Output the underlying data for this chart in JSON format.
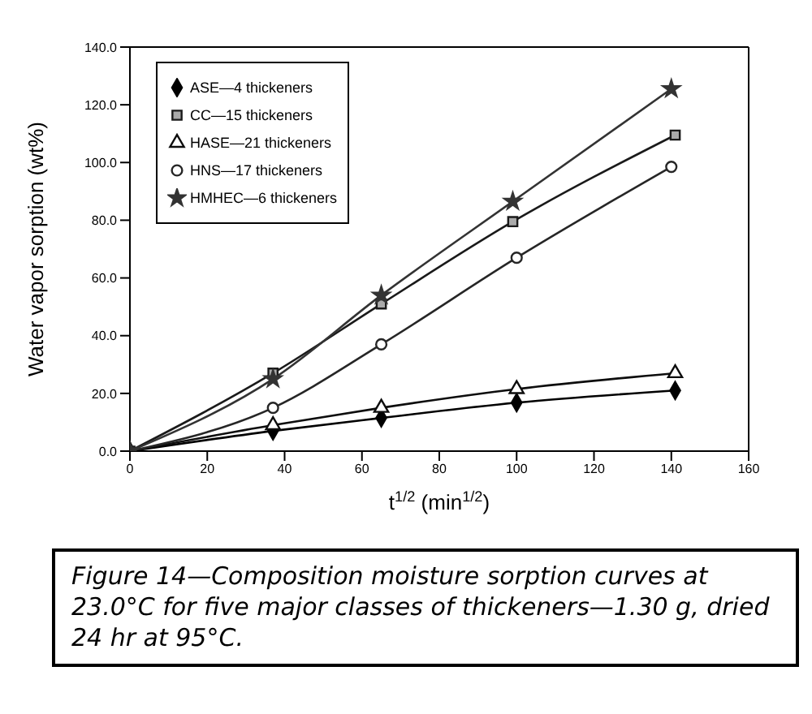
{
  "chart_data": {
    "type": "line",
    "xlabel": "t$^{1/2}$ (min$^{1/2}$)",
    "ylabel": "Water vapor sorption (wt%)",
    "annotations": [
      "Figure 14—Composition moisture sorption curves at 23.0°C for five major classes of thickeners—1.30 g, dried 24 hr at 95°C."
    ],
    "series": [
      {
        "name": "ASE—4 thickeners",
        "color": "#000000",
        "marker": "diamond",
        "x": [
          0,
          37,
          65,
          100,
          141
        ],
        "values": [
          0,
          7,
          11.5,
          16.8,
          21
        ]
      },
      {
        "name": "CC—15 thickeners",
        "color": "#1a1a1a",
        "marker": "square",
        "x": [
          0,
          37,
          65,
          99,
          141
        ],
        "values": [
          0,
          27,
          51,
          79.5,
          109.5
        ]
      },
      {
        "name": "HASE—21 thickeners",
        "color": "#0d0d0d",
        "marker": "triangle",
        "x": [
          0,
          37,
          65,
          100,
          141
        ],
        "values": [
          0,
          9,
          15,
          21.5,
          27
        ]
      },
      {
        "name": "HNS—17 thickeners",
        "color": "#262626",
        "marker": "circle",
        "x": [
          0,
          37,
          65,
          100,
          140
        ],
        "values": [
          0,
          15,
          37,
          67,
          98.5
        ]
      },
      {
        "name": "HMHEC—6 thickeners",
        "color": "#333333",
        "marker": "star",
        "x": [
          0,
          37,
          65,
          99,
          140
        ],
        "values": [
          0,
          25,
          54,
          86.5,
          125.5
        ]
      }
    ],
    "xlim": [
      0,
      160
    ],
    "xticks": [
      0,
      20,
      40,
      60,
      80,
      100,
      120,
      140,
      160
    ],
    "ylim": [
      0,
      140
    ],
    "yticks": [
      {
        "value": 0,
        "label": "0.0"
      },
      {
        "value": 20,
        "label": "20.0"
      },
      {
        "value": 40,
        "label": "40.0"
      },
      {
        "value": 60,
        "label": "60.0"
      },
      {
        "value": 80,
        "label": "80.0"
      },
      {
        "value": 100,
        "label": "100.0"
      },
      {
        "value": 120,
        "label": "120.0"
      },
      {
        "value": 140,
        "label": "140.0"
      }
    ],
    "legend": "top left",
    "grid": false,
    "line_style": "solid"
  }
}
